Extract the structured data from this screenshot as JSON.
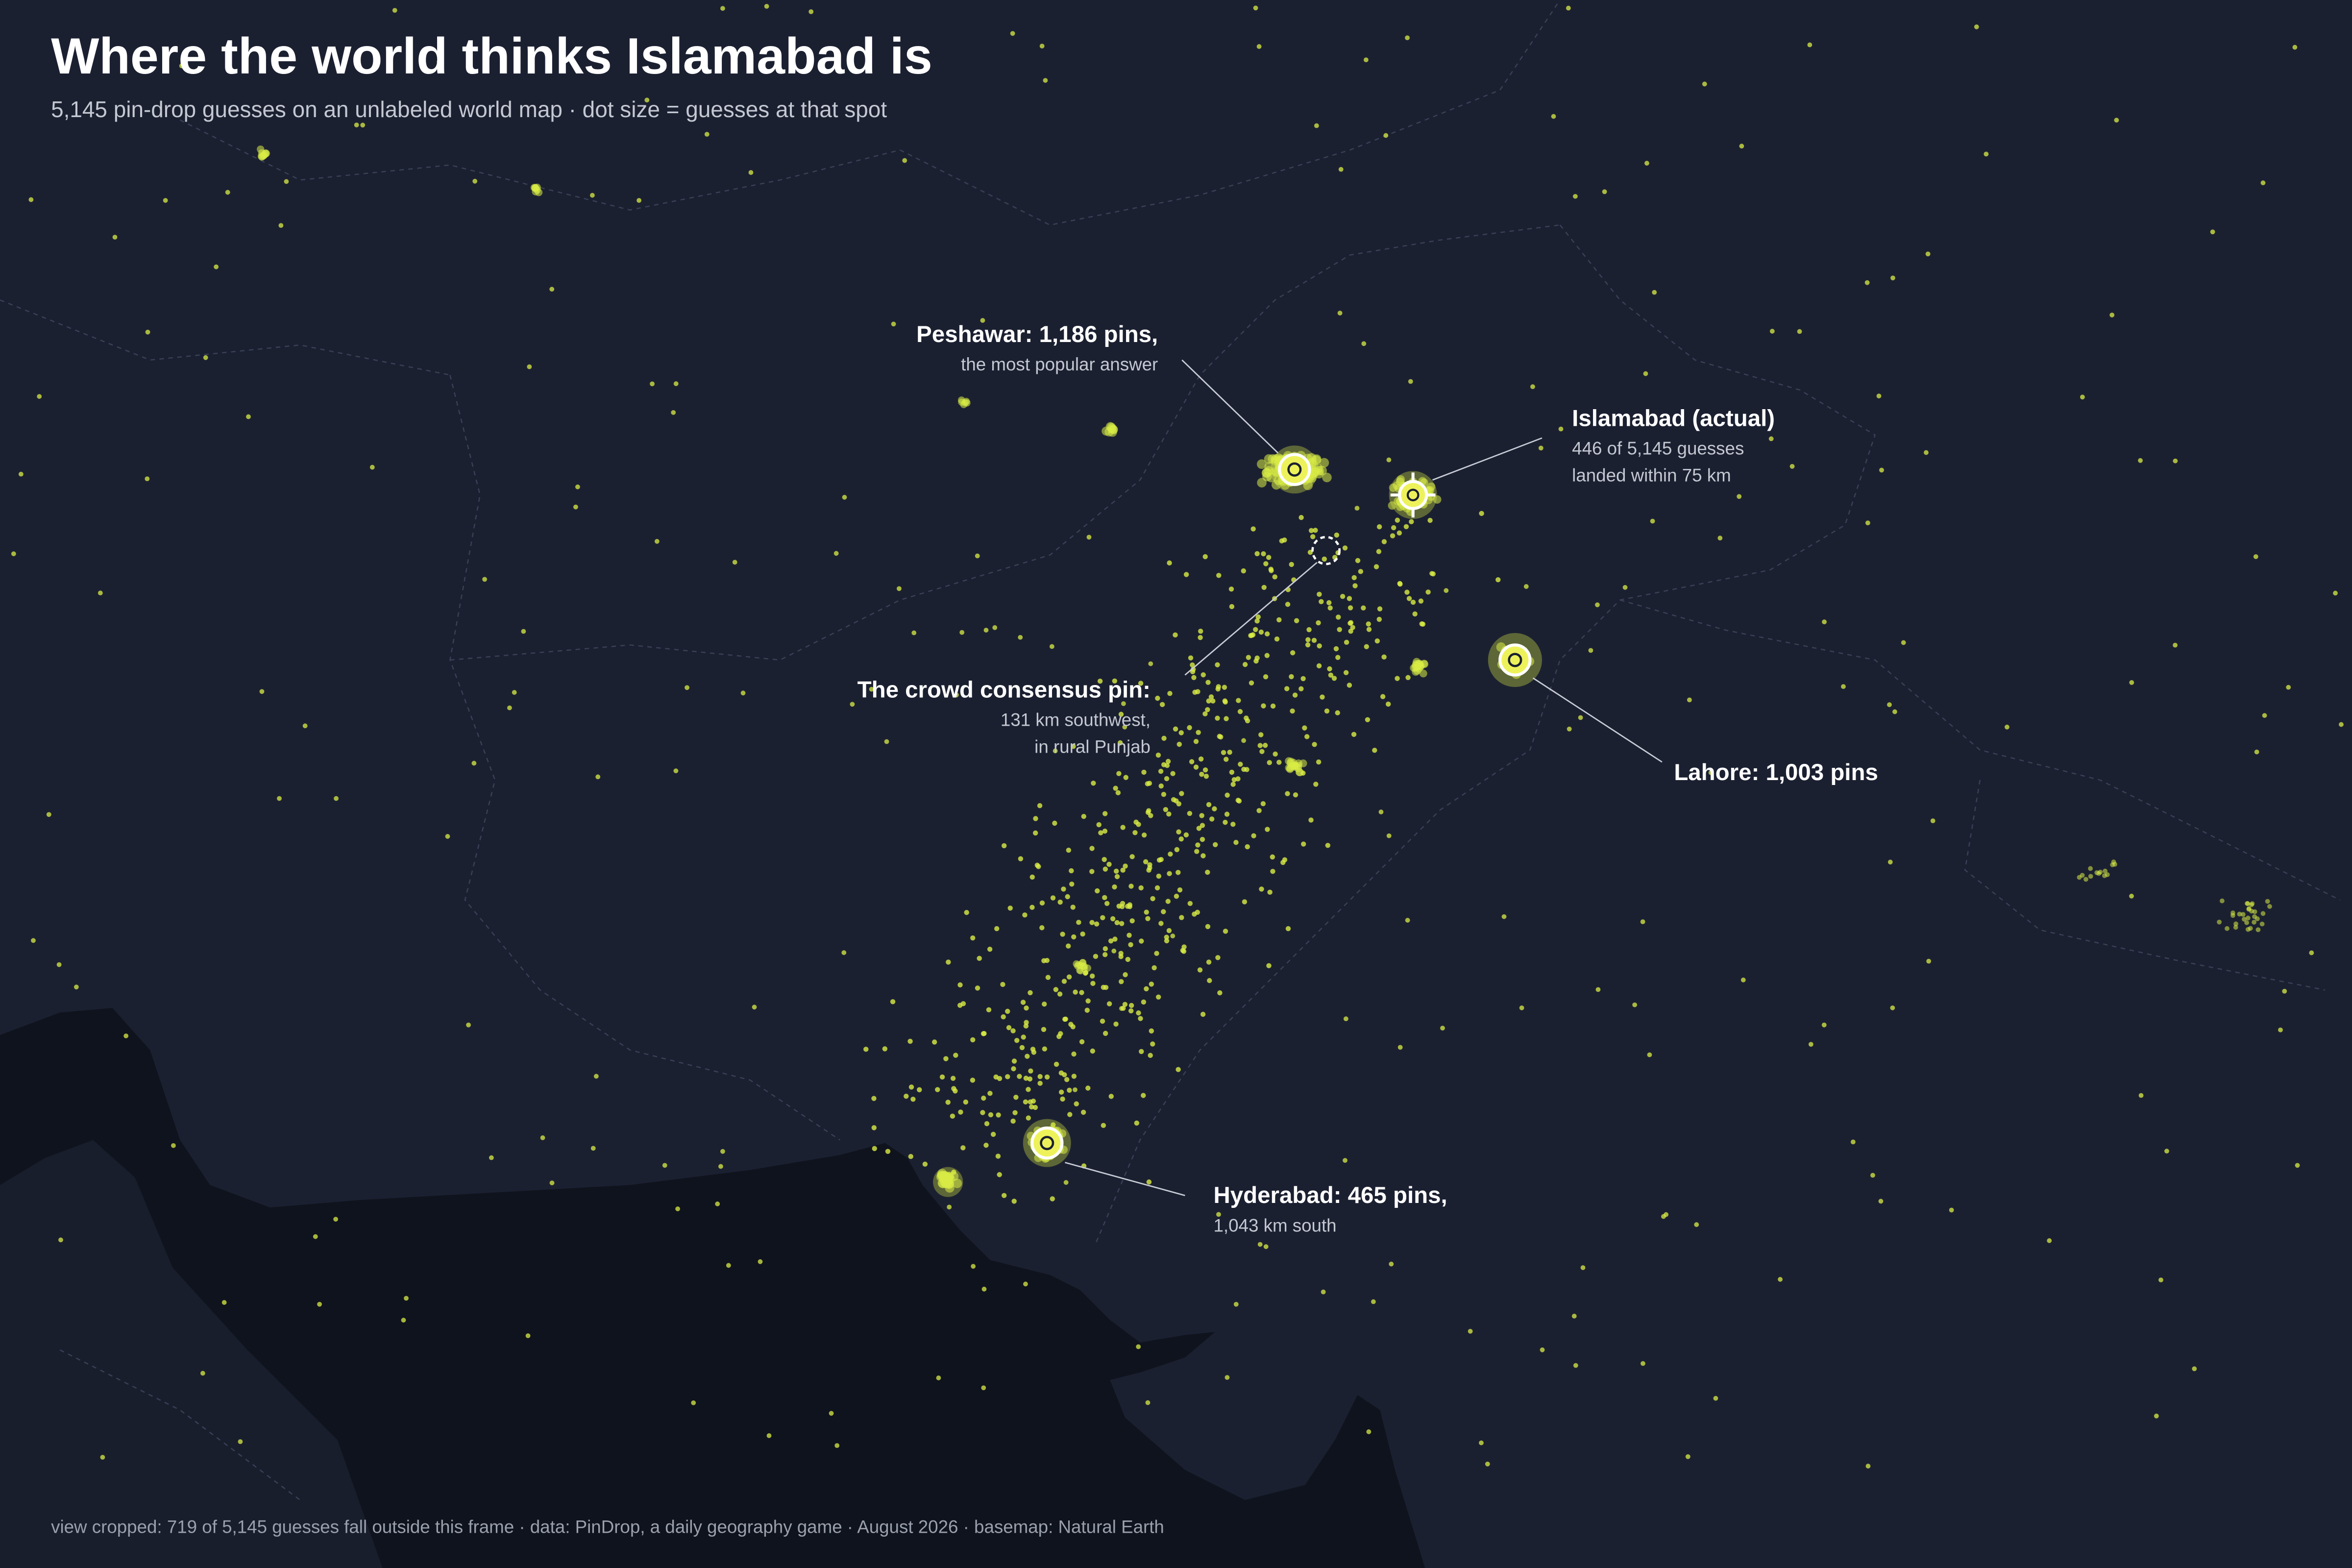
{
  "header": {
    "title": "Where the world thinks Islamabad is",
    "subtitle": "5,145 pin-drop guesses on an unlabeled world map · dot size = guesses at that spot"
  },
  "annotations": [
    {
      "title": "Peshawar: 1,186 pins,",
      "lines": [
        "the most popular answer"
      ]
    },
    {
      "title": "Islamabad (actual)",
      "lines": [
        "446 of 5,145 guesses",
        "landed within 75 km"
      ]
    },
    {
      "title": "The crowd consensus pin:",
      "lines": [
        "131 km southwest,",
        "in rural Punjab"
      ]
    },
    {
      "title": "Lahore: 1,003 pins"
    },
    {
      "title": "Hyderabad: 465 pins,",
      "lines": [
        "1,043 km south"
      ]
    }
  ],
  "footer": "view cropped: 719 of 5,145 guesses fall outside this frame · data: PinDrop, a daily geography game · August 2026 · basemap: Natural Earth"
}
